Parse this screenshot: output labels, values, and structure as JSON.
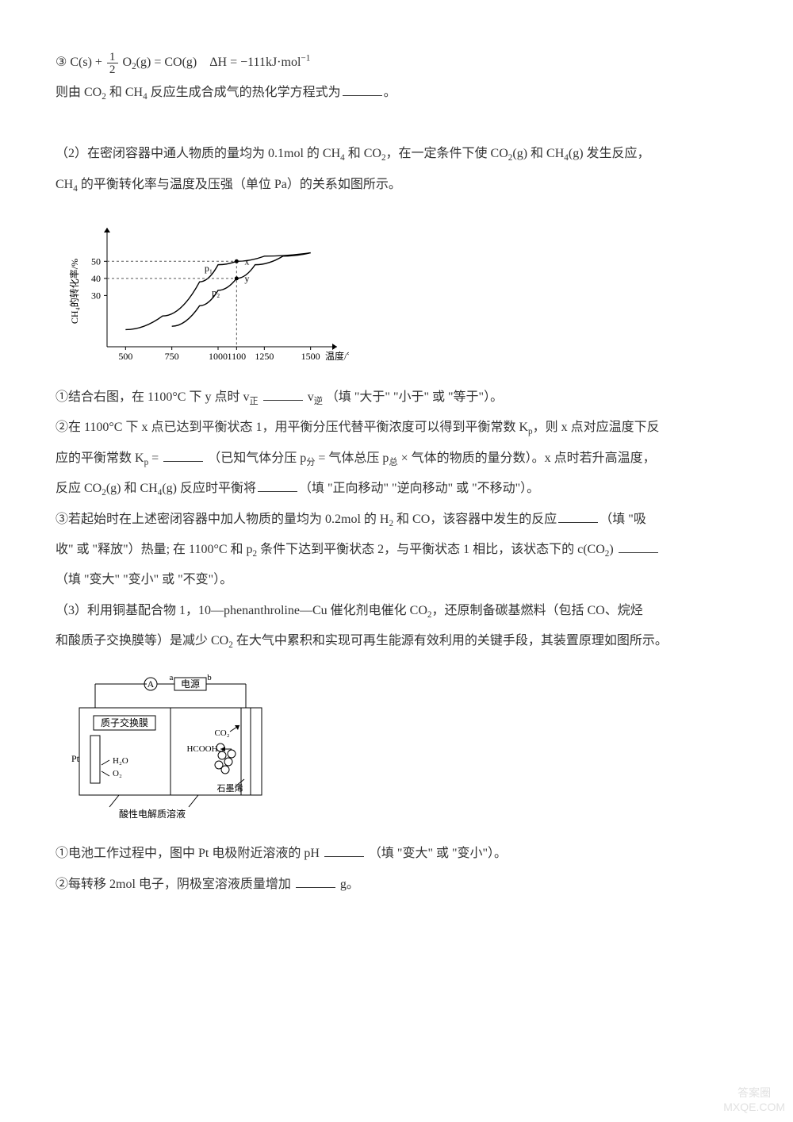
{
  "eq3": {
    "label": "③",
    "lhs_a": "C(s) +",
    "frac_num": "1",
    "frac_den": "2",
    "lhs_b": "O",
    "lhs_b_sub": "2",
    "lhs_c": "(g) = CO(g)",
    "dH": "ΔH = −111kJ·mol",
    "dH_sup": "−1"
  },
  "line1": {
    "a": "则由 CO",
    "a_sub": "2",
    "b": " 和 CH",
    "b_sub": "4",
    "c": " 反应生成合成气的热化学方程式为",
    "end": "。"
  },
  "q2": {
    "a": "（2）在密闭容器中通人物质的量均为 0.1mol 的 CH",
    "a_sub": "4",
    "b": " 和 CO",
    "b_sub": "2",
    "c": "，在一定条件下使 CO",
    "c_sub": "2",
    "d": "(g) 和 CH",
    "d_sub": "4",
    "e": "(g) 发生反应，",
    "line2a": "CH",
    "line2a_sub": "4",
    "line2b": " 的平衡转化率与温度及压强（单位 Pa）的关系如图所示。"
  },
  "chart1": {
    "type": "line",
    "y_label": "CH₄的转化率/%",
    "x_label": "温度/℃",
    "x_ticks": [
      "500",
      "750",
      "1000",
      "1100",
      "1250",
      "1500"
    ],
    "y_ticks": [
      "30",
      "40",
      "50"
    ],
    "p_labels": [
      "p₁",
      "p₂"
    ],
    "point_labels": [
      "x",
      "y"
    ],
    "curve_p1": [
      [
        500,
        10
      ],
      [
        700,
        18
      ],
      [
        900,
        38
      ],
      [
        1000,
        48
      ],
      [
        1100,
        50
      ],
      [
        1250,
        53
      ],
      [
        1500,
        55
      ]
    ],
    "curve_p2": [
      [
        750,
        12
      ],
      [
        900,
        24
      ],
      [
        1000,
        33
      ],
      [
        1100,
        40
      ],
      [
        1200,
        48
      ],
      [
        1350,
        53
      ],
      [
        1500,
        55
      ]
    ],
    "axis_color": "#000000",
    "curve_color": "#000000",
    "dash_color": "#555555",
    "background": "#ffffff",
    "font_size": 12,
    "xlim": [
      400,
      1600
    ],
    "ylim": [
      0,
      65
    ]
  },
  "q2_1": {
    "a": "①结合右图，在 1100°C 下 y 点时 v",
    "a_sub": "正",
    "b": " v",
    "b_sub": "逆",
    "c": "（填 \"大于\" \"小于\" 或 \"等于\"）。"
  },
  "q2_2": {
    "a": "②在 1100°C 下 x 点已达到平衡状态 1，用平衡分压代替平衡浓度可以得到平衡常数 K",
    "a_sub": "p",
    "b": "，则 x 点对应温度下反",
    "line2a": "应的平衡常数 K",
    "line2a_sub": "p",
    "line2b": " = ",
    "line2c": "（已知气体分压 p",
    "line2c_sub": "分",
    "line2d": " = 气体总压 p",
    "line2d_sub": "总",
    "line2e": " × 气体的物质的量分数）。x 点时若升高温度，",
    "line3a": "反应 CO",
    "line3a_sub": "2",
    "line3b": "(g) 和 CH",
    "line3b_sub": "4",
    "line3c": "(g) 反应时平衡将",
    "line3d": "（填 \"正向移动\" \"逆向移动\" 或 \"不移动\"）。"
  },
  "q2_3": {
    "a": "③若起始时在上述密闭容器中加人物质的量均为 0.2mol 的 H",
    "a_sub": "2",
    "b": " 和 CO，该容器中发生的反应",
    "c": "（填 \"吸",
    "line2a": "收\" 或 \"释放\"）热量; 在 1100°C 和 p",
    "line2a_sub": "2",
    "line2b": " 条件下达到平衡状态 2，与平衡状态 1 相比，该状态下的 c(CO",
    "line2b_sub": "2",
    "line2c": ")",
    "line3": "（填 \"变大\" \"变小\" 或 \"不变\"）。"
  },
  "q3": {
    "a": "（3）利用铜基配合物 1，10—phenanthroline—Cu 催化剂电催化 CO",
    "a_sub": "2",
    "b": "，还原制备碳基燃料（包括 CO、烷烃",
    "line2a": "和酸质子交换膜等）是减少 CO",
    "line2a_sub": "2",
    "line2b": " 在大气中累积和实现可再生能源有效利用的关键手段，其装置原理如图所示。"
  },
  "device": {
    "type": "diagram",
    "labels": {
      "power": "电源",
      "a": "a",
      "b": "b",
      "A": "A",
      "membrane": "质子交换膜",
      "co2": "CO₂",
      "hcooh": "HCOOH",
      "pt": "Pt",
      "h2o": "H₂O",
      "o2": "O₂",
      "graphene": "石墨烯",
      "solution": "酸性电解质溶液"
    },
    "stroke_color": "#000000",
    "font_size": 12,
    "background": "#ffffff"
  },
  "q3_1": {
    "a": "①电池工作过程中，图中 Pt 电极附近溶液的 pH",
    "b": "（填 \"变大\" 或 \"变小\"）。"
  },
  "q3_2": {
    "a": "②每转移 2mol 电子，阴极室溶液质量增加",
    "b": "g。"
  },
  "watermark": {
    "l1": "答案圈",
    "l2": "MXQE.COM"
  }
}
